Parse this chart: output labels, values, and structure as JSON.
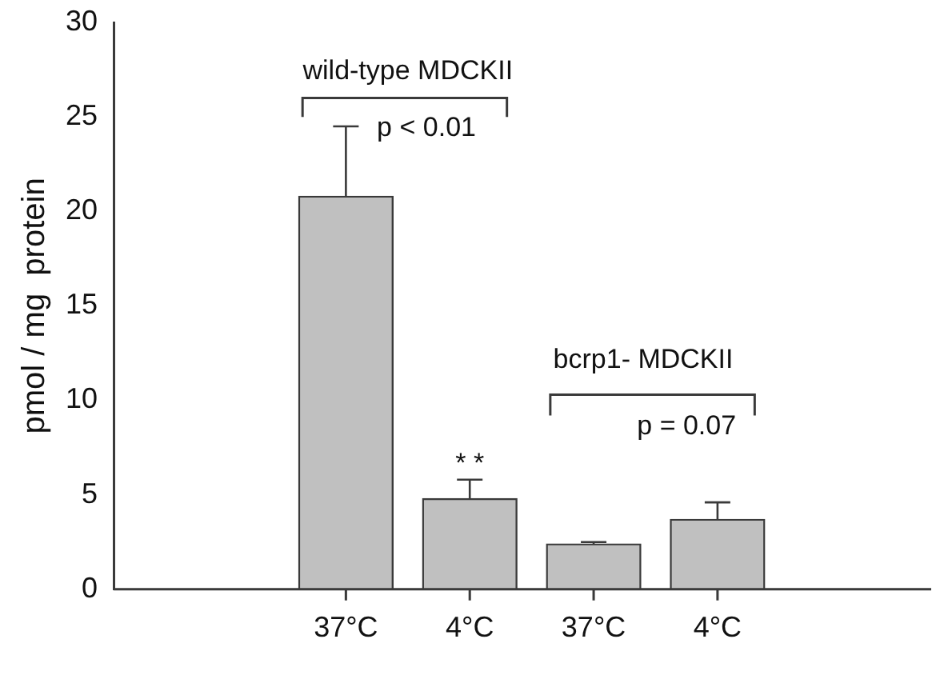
{
  "chart_data": {
    "type": "bar",
    "ylabel": "pmol / mg  protein",
    "categories": [
      "37°C",
      "4°C",
      "37°C",
      "4°C"
    ],
    "values": [
      20.8,
      4.8,
      2.4,
      3.7
    ],
    "errors": [
      3.7,
      1.0,
      0.1,
      0.9
    ],
    "color": "#c0c0c0",
    "ylim": [
      0,
      30
    ],
    "yticks": [
      0,
      5,
      10,
      15,
      20,
      25,
      30
    ],
    "grid": false,
    "legend": false,
    "annotations": [
      "wild-type MDCKII",
      "p < 0.01",
      "bcrp1- MDCKII",
      "p = 0.07",
      "* *"
    ]
  }
}
